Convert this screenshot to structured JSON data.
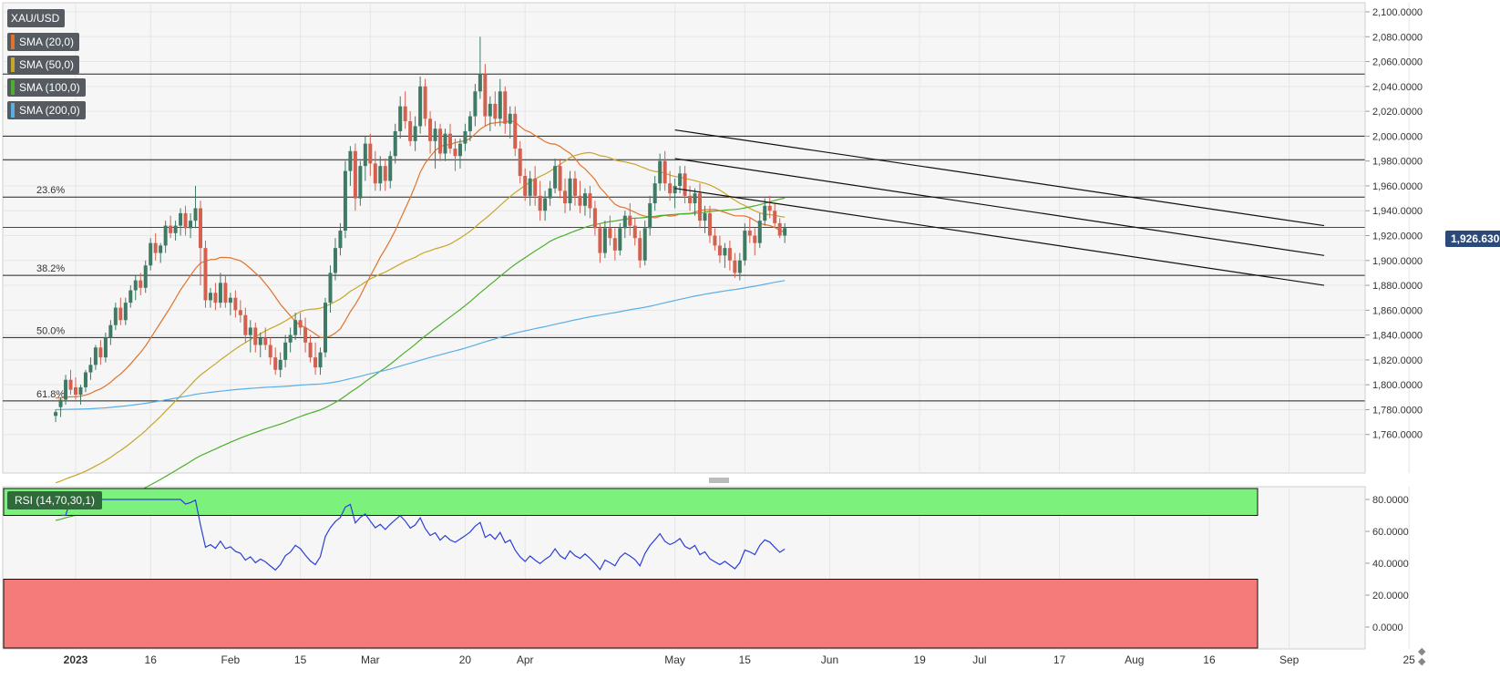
{
  "chart_data": {
    "type": "candlestick",
    "symbol": "XAU/USD",
    "last_price": "1,926.6300",
    "indicators": [
      {
        "label": "SMA (20,0)",
        "color": "#e0742c"
      },
      {
        "label": "SMA (50,0)",
        "color": "#c7a62a"
      },
      {
        "label": "SMA (100,0)",
        "color": "#4caf2e"
      },
      {
        "label": "SMA (200,0)",
        "color": "#5aaee6"
      }
    ],
    "y_axis": {
      "ylim": [
        1740,
        2100
      ],
      "ticks": [
        {
          "value": 2100,
          "label": "2,100.0000"
        },
        {
          "value": 2080,
          "label": "2,080.0000"
        },
        {
          "value": 2060,
          "label": "2,060.0000"
        },
        {
          "value": 2040,
          "label": "2,040.0000"
        },
        {
          "value": 2020,
          "label": "2,020.0000"
        },
        {
          "value": 2000,
          "label": "2,000.0000"
        },
        {
          "value": 1980,
          "label": "1,980.0000"
        },
        {
          "value": 1960,
          "label": "1,960.0000"
        },
        {
          "value": 1940,
          "label": "1,940.0000"
        },
        {
          "value": 1920,
          "label": "1,920.0000"
        },
        {
          "value": 1900,
          "label": "1,900.0000"
        },
        {
          "value": 1880,
          "label": "1,880.0000"
        },
        {
          "value": 1860,
          "label": "1,860.0000"
        },
        {
          "value": 1840,
          "label": "1,840.0000"
        },
        {
          "value": 1820,
          "label": "1,820.0000"
        },
        {
          "value": 1800,
          "label": "1,800.0000"
        },
        {
          "value": 1780,
          "label": "1,780.0000"
        },
        {
          "value": 1760,
          "label": "1,760.0000"
        }
      ]
    },
    "x_axis": {
      "ticks": [
        {
          "day": 0,
          "label": "2023"
        },
        {
          "day": 15,
          "label": "16"
        },
        {
          "day": 31,
          "label": "Feb"
        },
        {
          "day": 45,
          "label": "15"
        },
        {
          "day": 59,
          "label": "Mar"
        },
        {
          "day": 78,
          "label": "20"
        },
        {
          "day": 90,
          "label": "Apr"
        },
        {
          "day": 120,
          "label": "May"
        },
        {
          "day": 134,
          "label": "15"
        },
        {
          "day": 151,
          "label": "Jun"
        },
        {
          "day": 169,
          "label": "19"
        },
        {
          "day": 181,
          "label": "Jul"
        },
        {
          "day": 197,
          "label": "17"
        },
        {
          "day": 212,
          "label": "Aug"
        },
        {
          "day": 227,
          "label": "16"
        },
        {
          "day": 243,
          "label": "Sep"
        },
        {
          "day": 267,
          "label": "25"
        }
      ]
    },
    "horizontal_levels": [
      2050,
      2000,
      1981,
      1951,
      1888,
      1838,
      1787
    ],
    "fibonacci_labels": [
      {
        "label": "23.6%",
        "value": 1951
      },
      {
        "label": "38.2%",
        "value": 1888
      },
      {
        "label": "50.0%",
        "value": 1838
      },
      {
        "label": "61.8%",
        "value": 1787
      }
    ],
    "channel_lines": [
      {
        "from": [
          120,
          2005
        ],
        "to": [
          250,
          1928
        ]
      },
      {
        "from": [
          120,
          1982
        ],
        "to": [
          250,
          1904
        ]
      },
      {
        "from": [
          120,
          1958
        ],
        "to": [
          250,
          1880
        ]
      }
    ],
    "rsi": {
      "label": "RSI (14,70,30,1)",
      "overbought": 70,
      "oversold": 30,
      "ticks": [
        {
          "value": 80,
          "label": "80.0000"
        },
        {
          "value": 60,
          "label": "60.0000"
        },
        {
          "value": 40,
          "label": "40.0000"
        },
        {
          "value": 20,
          "label": "20.0000"
        },
        {
          "value": 0,
          "label": "0.0000"
        }
      ]
    },
    "candles_start_day": -4,
    "candles": [
      [
        1775,
        1780,
        1770,
        1778
      ],
      [
        1782,
        1790,
        1774,
        1788
      ],
      [
        1788,
        1808,
        1784,
        1804
      ],
      [
        1804,
        1812,
        1792,
        1796
      ],
      [
        1798,
        1806,
        1788,
        1792
      ],
      [
        1792,
        1800,
        1784,
        1798
      ],
      [
        1798,
        1812,
        1794,
        1810
      ],
      [
        1810,
        1822,
        1804,
        1816
      ],
      [
        1816,
        1832,
        1812,
        1830
      ],
      [
        1830,
        1836,
        1816,
        1822
      ],
      [
        1822,
        1842,
        1818,
        1838
      ],
      [
        1838,
        1852,
        1832,
        1848
      ],
      [
        1848,
        1866,
        1844,
        1862
      ],
      [
        1862,
        1870,
        1848,
        1852
      ],
      [
        1852,
        1870,
        1848,
        1866
      ],
      [
        1866,
        1880,
        1862,
        1876
      ],
      [
        1876,
        1888,
        1868,
        1884
      ],
      [
        1884,
        1890,
        1872,
        1878
      ],
      [
        1878,
        1900,
        1874,
        1896
      ],
      [
        1896,
        1918,
        1892,
        1914
      ],
      [
        1914,
        1922,
        1900,
        1906
      ],
      [
        1906,
        1914,
        1898,
        1912
      ],
      [
        1912,
        1932,
        1906,
        1928
      ],
      [
        1928,
        1936,
        1918,
        1922
      ],
      [
        1922,
        1932,
        1916,
        1928
      ],
      [
        1928,
        1942,
        1920,
        1938
      ],
      [
        1938,
        1944,
        1920,
        1926
      ],
      [
        1926,
        1938,
        1918,
        1932
      ],
      [
        1932,
        1960,
        1926,
        1942
      ],
      [
        1942,
        1948,
        1880,
        1910
      ],
      [
        1910,
        1916,
        1862,
        1868
      ],
      [
        1868,
        1878,
        1862,
        1874
      ],
      [
        1874,
        1882,
        1860,
        1866
      ],
      [
        1866,
        1890,
        1862,
        1882
      ],
      [
        1882,
        1888,
        1862,
        1866
      ],
      [
        1866,
        1874,
        1856,
        1870
      ],
      [
        1870,
        1876,
        1854,
        1860
      ],
      [
        1860,
        1868,
        1850,
        1856
      ],
      [
        1856,
        1862,
        1834,
        1840
      ],
      [
        1840,
        1852,
        1826,
        1846
      ],
      [
        1846,
        1850,
        1826,
        1832
      ],
      [
        1832,
        1842,
        1822,
        1838
      ],
      [
        1838,
        1846,
        1828,
        1832
      ],
      [
        1832,
        1838,
        1816,
        1822
      ],
      [
        1822,
        1830,
        1808,
        1812
      ],
      [
        1812,
        1826,
        1806,
        1820
      ],
      [
        1820,
        1840,
        1814,
        1834
      ],
      [
        1834,
        1846,
        1826,
        1840
      ],
      [
        1840,
        1858,
        1836,
        1852
      ],
      [
        1852,
        1858,
        1840,
        1846
      ],
      [
        1846,
        1854,
        1826,
        1834
      ],
      [
        1834,
        1840,
        1818,
        1822
      ],
      [
        1822,
        1834,
        1808,
        1814
      ],
      [
        1814,
        1830,
        1808,
        1826
      ],
      [
        1826,
        1870,
        1822,
        1866
      ],
      [
        1866,
        1896,
        1858,
        1890
      ],
      [
        1890,
        1918,
        1884,
        1910
      ],
      [
        1910,
        1930,
        1904,
        1924
      ],
      [
        1924,
        1980,
        1918,
        1972
      ],
      [
        1972,
        1992,
        1960,
        1988
      ],
      [
        1988,
        1994,
        1940,
        1950
      ],
      [
        1950,
        1980,
        1944,
        1976
      ],
      [
        1976,
        2000,
        1964,
        1994
      ],
      [
        1994,
        2002,
        1968,
        1978
      ],
      [
        1978,
        1988,
        1956,
        1962
      ],
      [
        1962,
        1984,
        1956,
        1976
      ],
      [
        1976,
        1982,
        1956,
        1964
      ],
      [
        1964,
        1988,
        1958,
        1984
      ],
      [
        1984,
        2010,
        1978,
        2004
      ],
      [
        2004,
        2032,
        1998,
        2024
      ],
      [
        2024,
        2036,
        2006,
        2012
      ],
      [
        2012,
        2020,
        1992,
        1996
      ],
      [
        1996,
        2016,
        1988,
        2008
      ],
      [
        2008,
        2048,
        2002,
        2040
      ],
      [
        2040,
        2046,
        2008,
        2014
      ],
      [
        2014,
        2020,
        1986,
        1996
      ],
      [
        1996,
        2012,
        1974,
        2006
      ],
      [
        2006,
        2010,
        1980,
        1986
      ],
      [
        1986,
        2006,
        1980,
        2002
      ],
      [
        2002,
        2010,
        1986,
        1990
      ],
      [
        1990,
        1998,
        1972,
        1984
      ],
      [
        1984,
        1998,
        1974,
        1994
      ],
      [
        1994,
        2010,
        1988,
        2004
      ],
      [
        2004,
        2020,
        1996,
        2016
      ],
      [
        2016,
        2042,
        2008,
        2036
      ],
      [
        2036,
        2080,
        2030,
        2050
      ],
      [
        2050,
        2058,
        2008,
        2016
      ],
      [
        2016,
        2032,
        2004,
        2026
      ],
      [
        2026,
        2036,
        2008,
        2014
      ],
      [
        2014,
        2046,
        2008,
        2036
      ],
      [
        2036,
        2040,
        2002,
        2010
      ],
      [
        2010,
        2024,
        1998,
        2018
      ],
      [
        2018,
        2024,
        1984,
        1990
      ],
      [
        1990,
        1996,
        1962,
        1968
      ],
      [
        1968,
        1974,
        1948,
        1952
      ],
      [
        1952,
        1972,
        1944,
        1966
      ],
      [
        1966,
        1976,
        1944,
        1952
      ],
      [
        1952,
        1964,
        1932,
        1940
      ],
      [
        1940,
        1956,
        1932,
        1950
      ],
      [
        1950,
        1964,
        1944,
        1958
      ],
      [
        1958,
        1982,
        1954,
        1976
      ],
      [
        1976,
        1982,
        1950,
        1956
      ],
      [
        1956,
        1966,
        1938,
        1946
      ],
      [
        1946,
        1972,
        1940,
        1966
      ],
      [
        1966,
        1972,
        1944,
        1952
      ],
      [
        1952,
        1964,
        1938,
        1944
      ],
      [
        1944,
        1958,
        1936,
        1954
      ],
      [
        1954,
        1960,
        1934,
        1942
      ],
      [
        1942,
        1948,
        1920,
        1926
      ],
      [
        1926,
        1930,
        1898,
        1906
      ],
      [
        1906,
        1932,
        1902,
        1926
      ],
      [
        1926,
        1936,
        1912,
        1918
      ],
      [
        1918,
        1926,
        1900,
        1908
      ],
      [
        1908,
        1930,
        1904,
        1926
      ],
      [
        1926,
        1940,
        1918,
        1936
      ],
      [
        1936,
        1946,
        1920,
        1928
      ],
      [
        1928,
        1934,
        1912,
        1918
      ],
      [
        1918,
        1924,
        1894,
        1900
      ],
      [
        1900,
        1932,
        1896,
        1926
      ],
      [
        1926,
        1952,
        1920,
        1946
      ],
      [
        1946,
        1968,
        1940,
        1962
      ],
      [
        1962,
        1986,
        1956,
        1980
      ],
      [
        1980,
        1988,
        1956,
        1962
      ],
      [
        1962,
        1972,
        1948,
        1954
      ],
      [
        1954,
        1966,
        1942,
        1960
      ],
      [
        1960,
        1976,
        1954,
        1970
      ],
      [
        1970,
        1976,
        1946,
        1952
      ],
      [
        1952,
        1960,
        1940,
        1946
      ],
      [
        1946,
        1958,
        1936,
        1954
      ],
      [
        1954,
        1962,
        1926,
        1932
      ],
      [
        1932,
        1944,
        1922,
        1938
      ],
      [
        1938,
        1944,
        1914,
        1920
      ],
      [
        1920,
        1926,
        1908,
        1912
      ],
      [
        1912,
        1920,
        1898,
        1904
      ],
      [
        1904,
        1914,
        1894,
        1910
      ],
      [
        1910,
        1916,
        1892,
        1900
      ],
      [
        1900,
        1906,
        1886,
        1890
      ],
      [
        1890,
        1906,
        1884,
        1900
      ],
      [
        1900,
        1930,
        1896,
        1924
      ],
      [
        1924,
        1934,
        1914,
        1920
      ],
      [
        1920,
        1926,
        1904,
        1914
      ],
      [
        1914,
        1938,
        1910,
        1932
      ],
      [
        1932,
        1950,
        1928,
        1944
      ],
      [
        1944,
        1952,
        1934,
        1940
      ],
      [
        1940,
        1946,
        1926,
        1930
      ],
      [
        1930,
        1934,
        1918,
        1920
      ],
      [
        1920,
        1930,
        1914,
        1926
      ]
    ]
  }
}
